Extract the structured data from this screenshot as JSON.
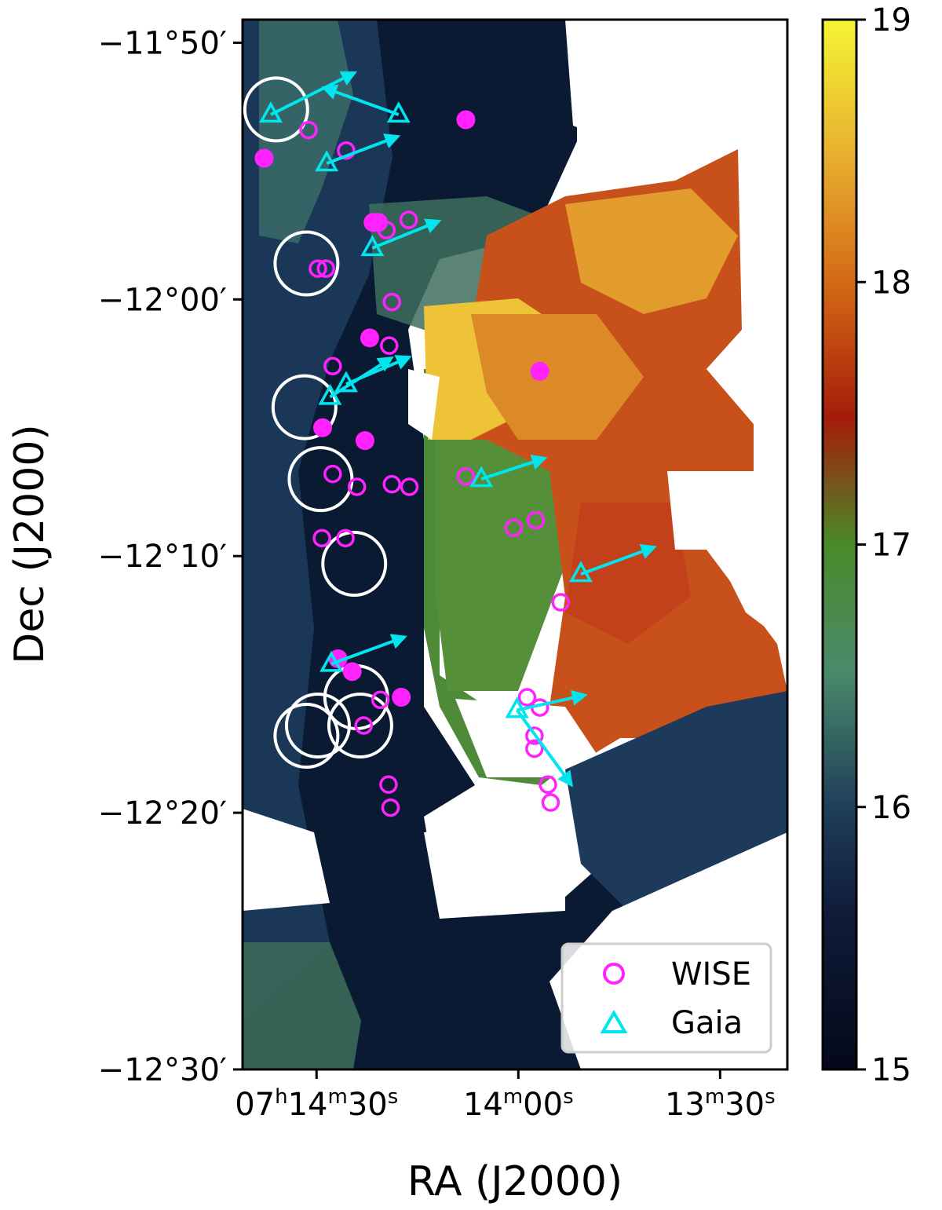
{
  "chart_data": {
    "type": "heatmap",
    "title": "",
    "xlabel": "RA (J2000)",
    "ylabel": "Dec (J2000)",
    "x_ticks": [
      {
        "ra_sec": 30,
        "pre": "07",
        "h": "h",
        "m_val": "14",
        "m": "m",
        "s_val": "30",
        "s": "s"
      },
      {
        "ra_sec": 0,
        "pre": "",
        "h": "",
        "m_val": "14",
        "m": "m",
        "s_val": "00",
        "s": "s"
      },
      {
        "ra_sec": -30,
        "pre": "",
        "h": "",
        "m_val": "13",
        "m": "m",
        "s_val": "30",
        "s": "s"
      }
    ],
    "y_ticks": [
      {
        "dec_arcmin": -710,
        "label": "−11°50′"
      },
      {
        "dec_arcmin": -720,
        "label": "−12°00′"
      },
      {
        "dec_arcmin": -730,
        "label": "−12°10′"
      },
      {
        "dec_arcmin": -740,
        "label": "−12°20′"
      },
      {
        "dec_arcmin": -750,
        "label": "−12°30′"
      }
    ],
    "xlim_ra_sec_offset": [
      41,
      -40
    ],
    "ylim_dec_arcmin": [
      -750,
      -709.1
    ],
    "colorbar": {
      "range": [
        15,
        19
      ],
      "ticks": [
        "15",
        "16",
        "17",
        "18",
        "19"
      ],
      "colormap": [
        "#05081a",
        "#1a2e55",
        "#4a8a6a",
        "#4a8a2a",
        "#a51c0a",
        "#d46a16",
        "#f0d838",
        "#f5f534"
      ]
    },
    "legend": {
      "position": "lower-right",
      "entries": [
        {
          "name": "WISE",
          "marker": "open-circle",
          "color": "#ff22ff"
        },
        {
          "name": "Gaia",
          "marker": "open-triangle",
          "color": "#00e5ee"
        }
      ]
    },
    "white_circles": [
      {
        "ra": 36.0,
        "dec": -712.6
      },
      {
        "ra": 31.5,
        "dec": -718.6
      },
      {
        "ra": 31.8,
        "dec": -724.2
      },
      {
        "ra": 29.4,
        "dec": -727.0
      },
      {
        "ra": 24.4,
        "dec": -730.3
      },
      {
        "ra": 24.1,
        "dec": -735.5
      },
      {
        "ra": 23.5,
        "dec": -736.6
      },
      {
        "ra": 29.8,
        "dec": -736.6
      },
      {
        "ra": 31.5,
        "dec": -737.0
      }
    ],
    "wise_sources": [
      {
        "ra": 31.2,
        "dec": -713.4
      },
      {
        "ra": 25.6,
        "dec": -714.2
      },
      {
        "ra": 16.3,
        "dec": -716.9
      },
      {
        "ra": 19.6,
        "dec": -717.3
      },
      {
        "ra": 29.8,
        "dec": -718.8
      },
      {
        "ra": 28.6,
        "dec": -718.8
      },
      {
        "ra": 18.8,
        "dec": -720.1
      },
      {
        "ra": 19.2,
        "dec": -721.8
      },
      {
        "ra": 27.6,
        "dec": -722.6
      },
      {
        "ra": 27.6,
        "dec": -726.8
      },
      {
        "ra": 24.0,
        "dec": -727.3
      },
      {
        "ra": 18.8,
        "dec": -727.2
      },
      {
        "ra": 16.2,
        "dec": -727.3
      },
      {
        "ra": 7.8,
        "dec": -726.9
      },
      {
        "ra": 0.7,
        "dec": -728.9
      },
      {
        "ra": -2.6,
        "dec": -728.6
      },
      {
        "ra": 29.2,
        "dec": -729.3
      },
      {
        "ra": 25.7,
        "dec": -729.3
      },
      {
        "ra": -6.3,
        "dec": -731.8
      },
      {
        "ra": 20.5,
        "dec": -735.6
      },
      {
        "ra": 23.0,
        "dec": -736.6
      },
      {
        "ra": -1.3,
        "dec": -735.5
      },
      {
        "ra": -3.2,
        "dec": -735.9
      },
      {
        "ra": -2.4,
        "dec": -737.5
      },
      {
        "ra": -2.4,
        "dec": -737.0
      },
      {
        "ra": 19.3,
        "dec": -738.9
      },
      {
        "ra": 19.0,
        "dec": -739.8
      },
      {
        "ra": -4.4,
        "dec": -738.9
      },
      {
        "ra": -4.8,
        "dec": -739.6
      }
    ],
    "filled_sources": [
      {
        "ra": 37.8,
        "dec": -714.5
      },
      {
        "ra": 7.8,
        "dec": -713.0
      },
      {
        "ra": 21.6,
        "dec": -717.0
      },
      {
        "ra": 20.8,
        "dec": -717.0
      },
      {
        "ra": 22.1,
        "dec": -721.5
      },
      {
        "ra": -3.2,
        "dec": -722.8
      },
      {
        "ra": 29.1,
        "dec": -725.0
      },
      {
        "ra": 22.8,
        "dec": -725.5
      },
      {
        "ra": 26.8,
        "dec": -734.0
      },
      {
        "ra": 24.7,
        "dec": -734.5
      },
      {
        "ra": 17.4,
        "dec": -735.5
      }
    ],
    "gaia_sources": [
      {
        "ra": 36.8,
        "dec": -712.8,
        "dx": 28.0,
        "dy": 1.4
      },
      {
        "ra": 17.8,
        "dec": -712.8,
        "dx": -25.0,
        "dy": 0.9
      },
      {
        "ra": 28.5,
        "dec": -714.7,
        "dx": 23.8,
        "dy": 0.9
      },
      {
        "ra": 21.7,
        "dec": -718.0,
        "dx": 22.2,
        "dy": 0.9
      },
      {
        "ra": 28.0,
        "dec": -723.8,
        "dx": 20.5,
        "dy": 1.3
      },
      {
        "ra": 25.6,
        "dec": -723.3,
        "dx": 21.1,
        "dy": 0.9
      },
      {
        "ra": 5.5,
        "dec": -727.0,
        "dx": 21.2,
        "dy": 0.7
      },
      {
        "ra": -9.3,
        "dec": -730.7,
        "dx": 24.5,
        "dy": 0.9
      },
      {
        "ra": 27.8,
        "dec": -734.2,
        "dx": 24.5,
        "dy": 0.9
      },
      {
        "ra": 0.2,
        "dec": -736.0,
        "dx": 22.7,
        "dy": 0.5
      },
      {
        "ra": 0.2,
        "dec": -736.0,
        "dx": 18.2,
        "dy": -2.5
      }
    ],
    "notes_direction": "dx, dy in screen-space pixels for proper-motion arrows"
  }
}
